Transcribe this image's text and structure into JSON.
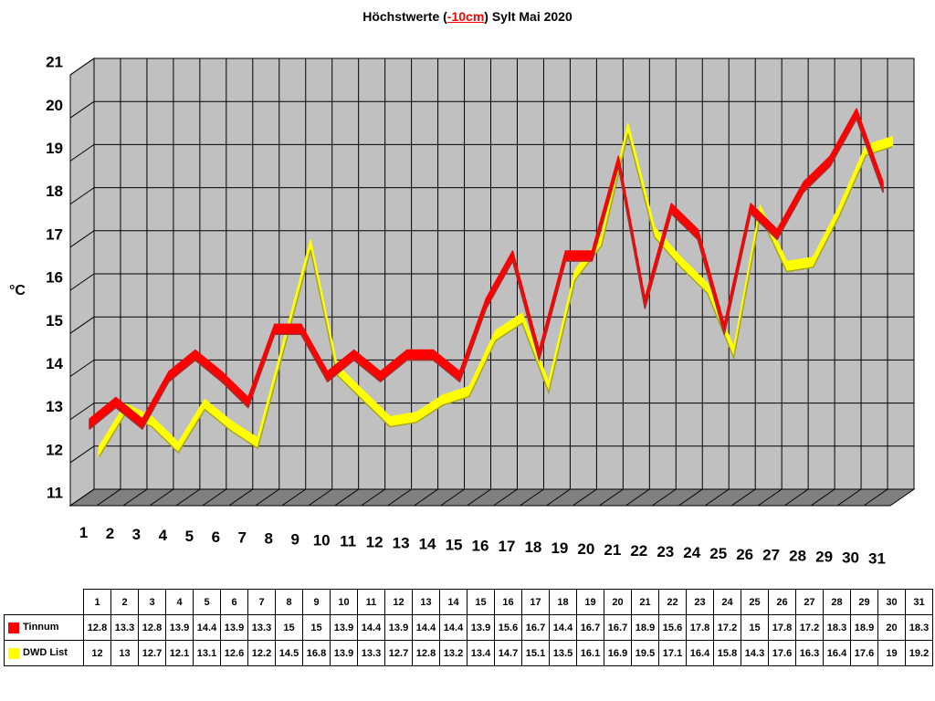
{
  "title": {
    "prefix": "Höchstwerte (",
    "highlight": "-10cm",
    "suffix": ") Sylt Mai 2020"
  },
  "chart_data": {
    "type": "line",
    "title": "Höchstwerte (-10cm) Sylt Mai 2020",
    "ylabel": "°C",
    "xlabel": "",
    "ylim": [
      11,
      21
    ],
    "yticks": [
      11,
      12,
      13,
      14,
      15,
      16,
      17,
      18,
      19,
      20,
      21
    ],
    "grid": true,
    "legend": "table-bottom",
    "categories": [
      "1",
      "2",
      "3",
      "4",
      "5",
      "6",
      "7",
      "8",
      "9",
      "10",
      "11",
      "12",
      "13",
      "14",
      "15",
      "16",
      "17",
      "18",
      "19",
      "20",
      "21",
      "22",
      "23",
      "24",
      "25",
      "26",
      "27",
      "28",
      "29",
      "30",
      "31"
    ],
    "series": [
      {
        "name": "Tinnum",
        "color": "#ff0000",
        "values": [
          12.8,
          13.3,
          12.8,
          13.9,
          14.4,
          13.9,
          13.3,
          15,
          15,
          13.9,
          14.4,
          13.9,
          14.4,
          14.4,
          13.9,
          15.6,
          16.7,
          14.4,
          16.7,
          16.7,
          18.9,
          15.6,
          17.8,
          17.2,
          15,
          17.8,
          17.2,
          18.3,
          18.9,
          20,
          18.3
        ]
      },
      {
        "name": "DWD List",
        "color": "#ffff00",
        "values": [
          12,
          13,
          12.7,
          12.1,
          13.1,
          12.6,
          12.2,
          14.5,
          16.8,
          13.9,
          13.3,
          12.7,
          12.8,
          13.2,
          13.4,
          14.7,
          15.1,
          13.5,
          16.1,
          16.9,
          19.5,
          17.1,
          16.4,
          15.8,
          14.3,
          17.6,
          16.3,
          16.4,
          17.6,
          19,
          19.2
        ]
      }
    ]
  }
}
